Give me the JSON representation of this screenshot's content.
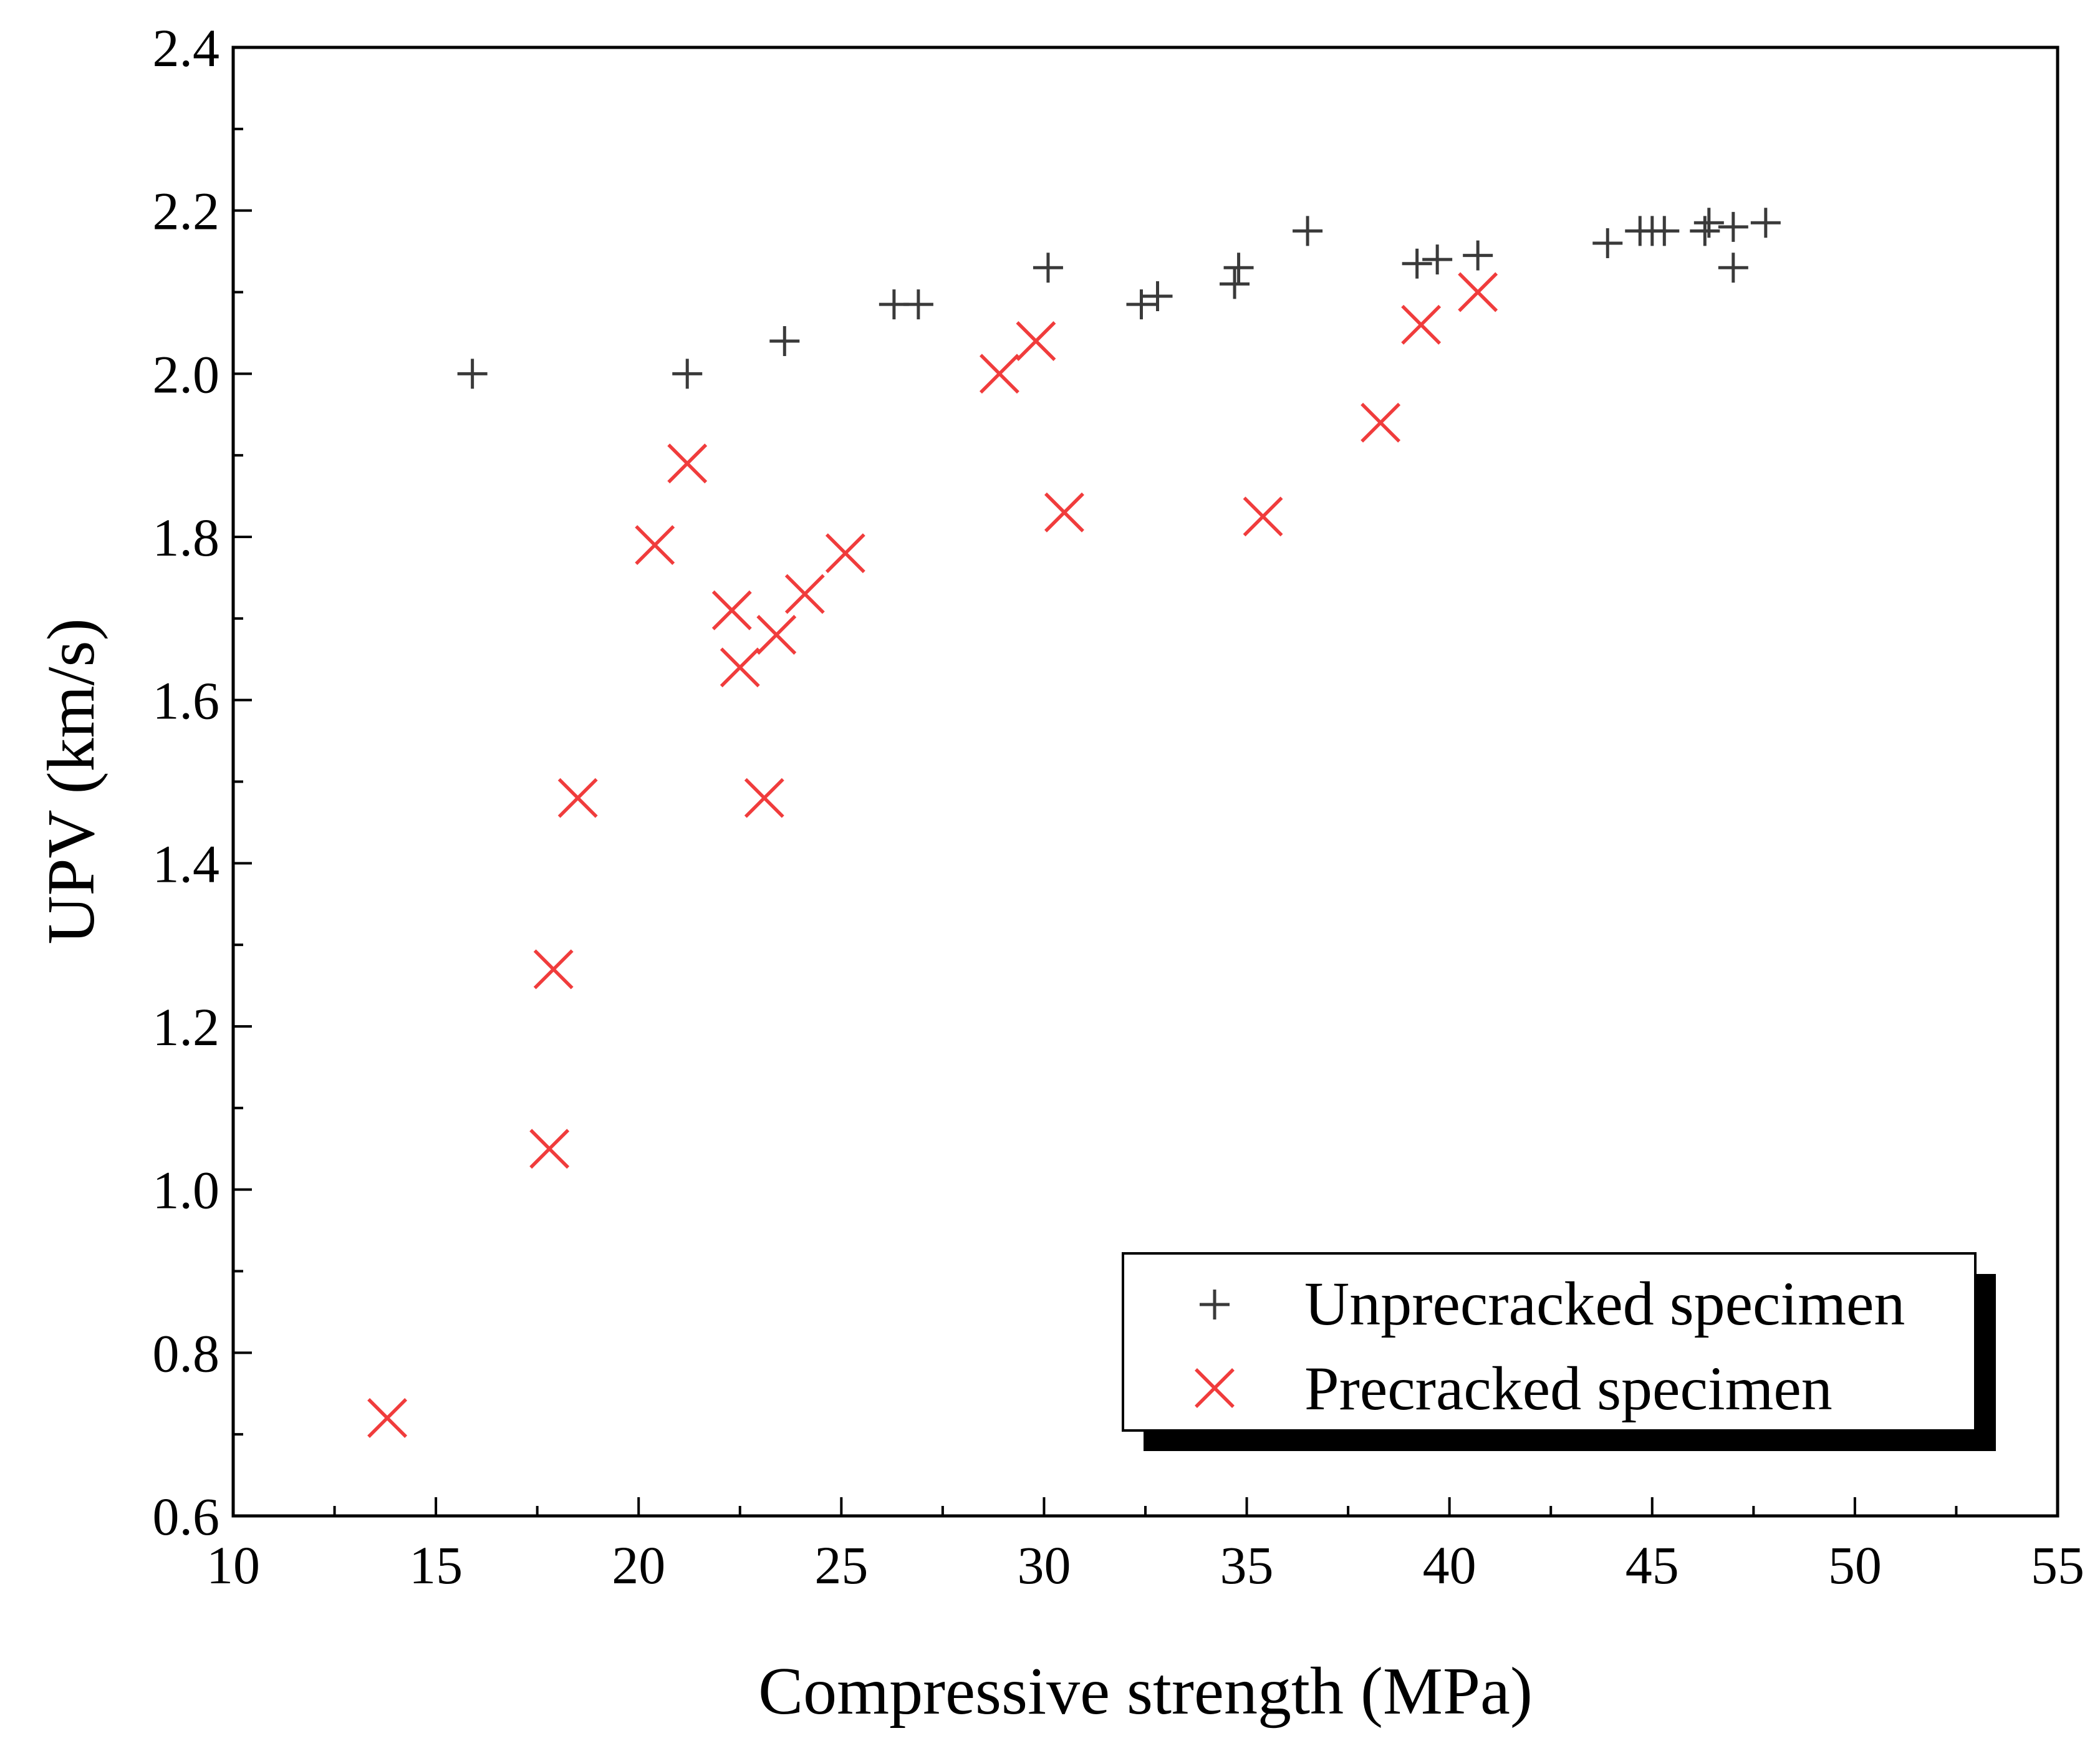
{
  "chart_data": {
    "type": "scatter",
    "title": "",
    "xlabel": "Compressive strength (MPa)",
    "ylabel": "UPV (km/s)",
    "xlim": [
      10,
      55
    ],
    "ylim": [
      0.6,
      2.4
    ],
    "x_ticks": [
      "10",
      "15",
      "20",
      "25",
      "30",
      "35",
      "40",
      "45",
      "50",
      "55"
    ],
    "y_ticks": [
      "0.6",
      "0.8",
      "1.0",
      "1.2",
      "1.4",
      "1.6",
      "1.8",
      "2.0",
      "2.2",
      "2.4"
    ],
    "grid": false,
    "legend_position": "bottom-right",
    "series": [
      {
        "name": "Unprecracked specimen",
        "marker": "plus",
        "color": "#3a3a3a",
        "points": [
          [
            15.9,
            2.0
          ],
          [
            21.2,
            2.0
          ],
          [
            23.6,
            2.04
          ],
          [
            26.3,
            2.085
          ],
          [
            26.9,
            2.085
          ],
          [
            30.1,
            2.13
          ],
          [
            32.4,
            2.085
          ],
          [
            32.8,
            2.095
          ],
          [
            34.7,
            2.11
          ],
          [
            34.8,
            2.13
          ],
          [
            36.5,
            2.175
          ],
          [
            39.2,
            2.135
          ],
          [
            39.7,
            2.14
          ],
          [
            40.7,
            2.145
          ],
          [
            43.9,
            2.16
          ],
          [
            44.7,
            2.175
          ],
          [
            45.0,
            2.175
          ],
          [
            45.3,
            2.175
          ],
          [
            46.3,
            2.175
          ],
          [
            46.4,
            2.185
          ],
          [
            47.0,
            2.18
          ],
          [
            47.0,
            2.13
          ],
          [
            47.8,
            2.185
          ]
        ]
      },
      {
        "name": "Precracked specimen",
        "marker": "x",
        "color": "#f03c3c",
        "points": [
          [
            13.8,
            0.72
          ],
          [
            17.8,
            1.05
          ],
          [
            17.9,
            1.27
          ],
          [
            18.5,
            1.48
          ],
          [
            20.4,
            1.79
          ],
          [
            21.2,
            1.89
          ],
          [
            22.3,
            1.71
          ],
          [
            22.5,
            1.64
          ],
          [
            23.1,
            1.48
          ],
          [
            23.4,
            1.68
          ],
          [
            24.1,
            1.73
          ],
          [
            25.1,
            1.78
          ],
          [
            28.9,
            2.0
          ],
          [
            29.8,
            2.04
          ],
          [
            30.5,
            1.83
          ],
          [
            35.4,
            1.825
          ],
          [
            38.3,
            1.94
          ],
          [
            39.3,
            2.06
          ],
          [
            40.7,
            2.1
          ]
        ]
      }
    ]
  }
}
